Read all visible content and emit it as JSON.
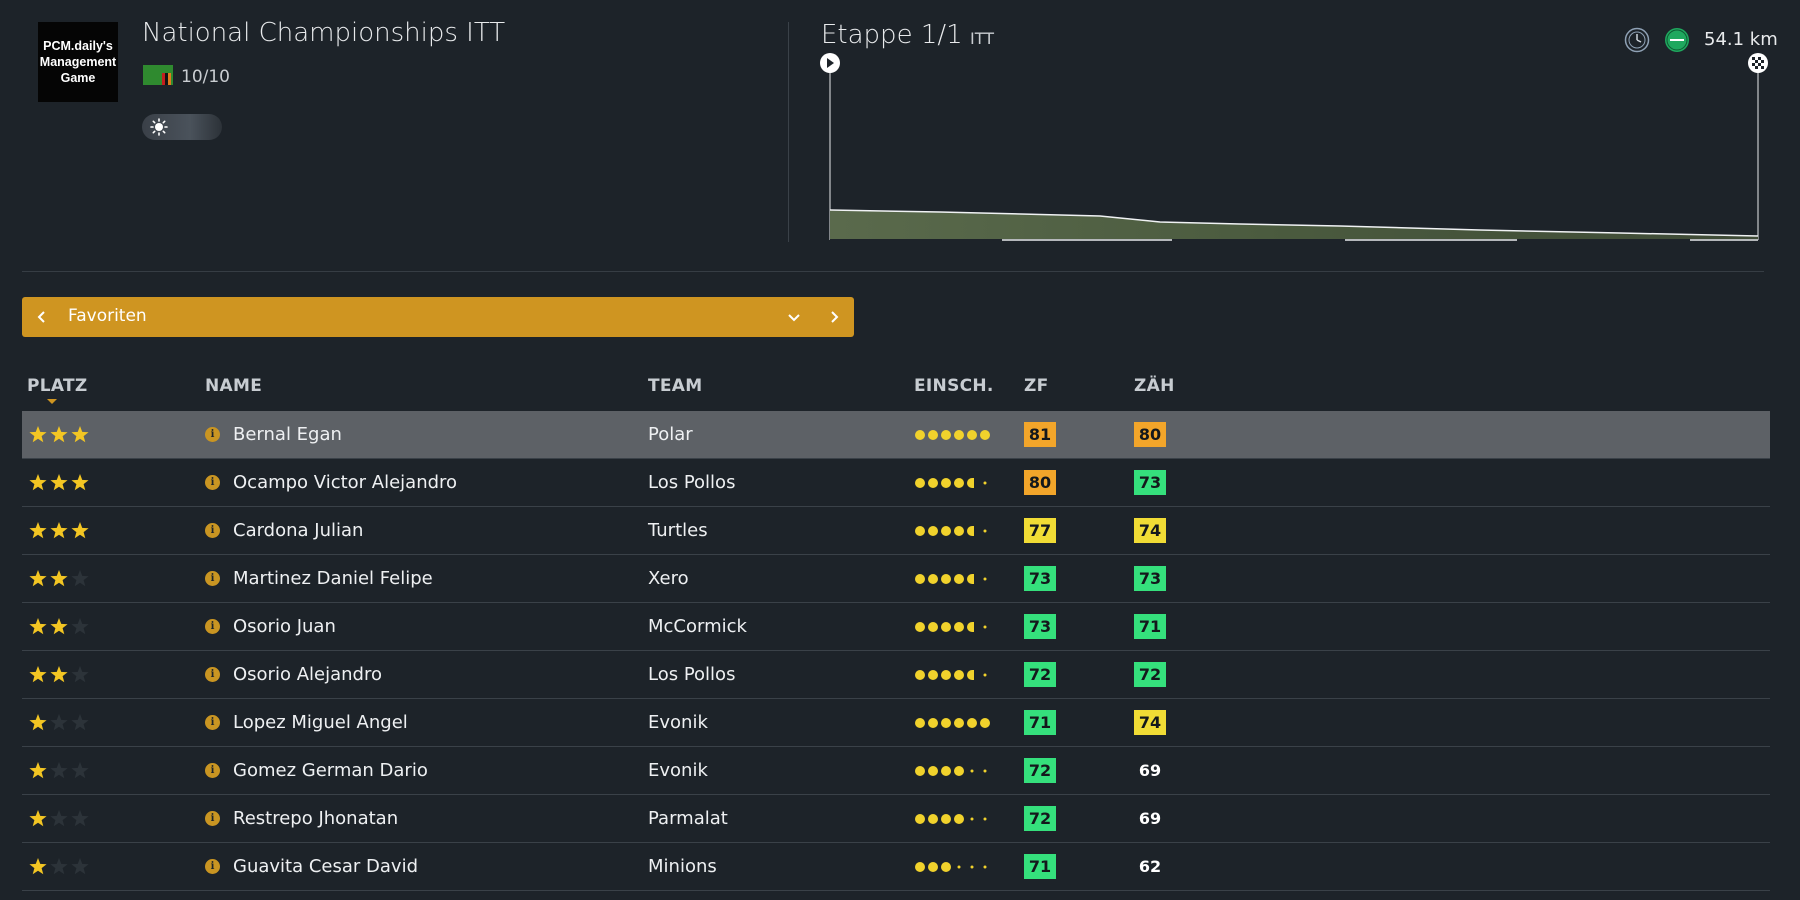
{
  "header": {
    "logo_text": "PCM.daily's\nManagement\nGame",
    "race_title": "National Championships ITT",
    "race_rating": "10/10",
    "stage_title": "Etappe 1/1",
    "stage_type": "ITT",
    "distance": "54.1 km",
    "icons": [
      "weather-sun-icon",
      "clock-icon",
      "flat-terrain-icon",
      "start-flag-icon",
      "finish-flag-icon"
    ]
  },
  "filter": {
    "label": "Favoriten"
  },
  "table": {
    "headers": {
      "platz": "PLATZ",
      "name": "NAME",
      "team": "TEAM",
      "einsch": "EINSCH.",
      "zf": "ZF",
      "zah": "ZÄH"
    },
    "rows": [
      {
        "stars": 3,
        "name": "Bernal Egan",
        "team": "Polar",
        "form": 6,
        "zf": "81",
        "zf_color": "#f2a52a",
        "zah": "80",
        "zah_color": "#f2a52a",
        "selected": true
      },
      {
        "stars": 3,
        "name": "Ocampo Victor Alejandro",
        "team": "Los Pollos",
        "form": 4.5,
        "zf": "80",
        "zf_color": "#f2a52a",
        "zah": "73",
        "zah_color": "#35e07c"
      },
      {
        "stars": 3,
        "name": "Cardona Julian",
        "team": "Turtles",
        "form": 4.5,
        "zf": "77",
        "zf_color": "#f1dc35",
        "zah": "74",
        "zah_color": "#f1dc35"
      },
      {
        "stars": 2,
        "name": "Martinez Daniel Felipe",
        "team": "Xero",
        "form": 4.5,
        "zf": "73",
        "zf_color": "#35e07c",
        "zah": "73",
        "zah_color": "#35e07c"
      },
      {
        "stars": 2,
        "name": "Osorio Juan",
        "team": "McCormick",
        "form": 4.5,
        "zf": "73",
        "zf_color": "#35e07c",
        "zah": "71",
        "zah_color": "#35e07c"
      },
      {
        "stars": 2,
        "name": "Osorio Alejandro",
        "team": "Los Pollos",
        "form": 4.5,
        "zf": "72",
        "zf_color": "#35e07c",
        "zah": "72",
        "zah_color": "#35e07c"
      },
      {
        "stars": 1,
        "name": "Lopez Miguel Angel",
        "team": "Evonik",
        "form": 6,
        "zf": "71",
        "zf_color": "#35e07c",
        "zah": "74",
        "zah_color": "#f1dc35"
      },
      {
        "stars": 1,
        "name": "Gomez German Dario",
        "team": "Evonik",
        "form": 4,
        "zf": "72",
        "zf_color": "#35e07c",
        "zah": "69",
        "zah_color": ""
      },
      {
        "stars": 1,
        "name": "Restrepo Jhonatan",
        "team": "Parmalat",
        "form": 4,
        "zf": "72",
        "zf_color": "#35e07c",
        "zah": "69",
        "zah_color": ""
      },
      {
        "stars": 1,
        "name": "Guavita Cesar David",
        "team": "Minions",
        "form": 3,
        "zf": "71",
        "zf_color": "#35e07c",
        "zah": "62",
        "zah_color": ""
      }
    ]
  },
  "colors": {
    "accent": "#cf9521",
    "star": "#f3c623",
    "star_empty": "#2c3339",
    "form_dot": "#f1d22c",
    "background": "#1d2329"
  }
}
